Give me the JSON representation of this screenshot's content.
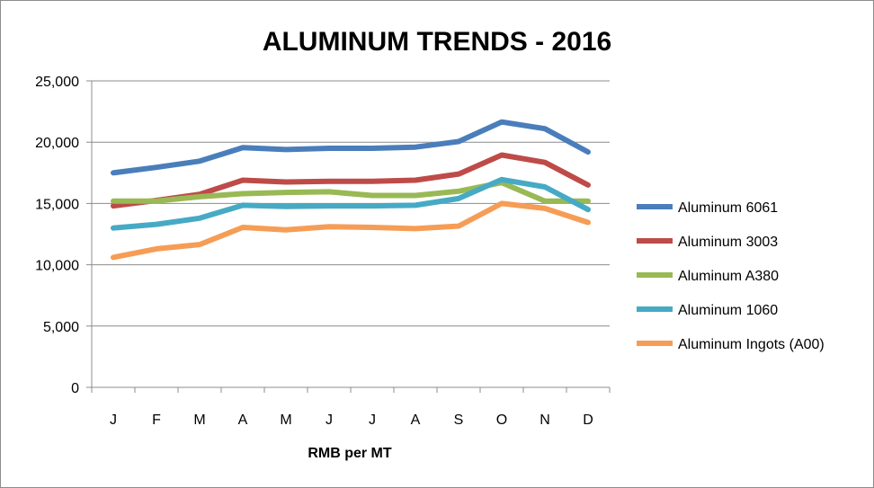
{
  "chart_data": {
    "type": "line",
    "title": "ALUMINUM TRENDS - 2016",
    "xlabel": "RMB per MT",
    "ylabel": "",
    "ylim": [
      0,
      25000
    ],
    "yticks": [
      0,
      5000,
      10000,
      15000,
      20000,
      25000
    ],
    "ytick_labels": [
      "0",
      "5,000",
      "10,000",
      "15,000",
      "20,000",
      "25,000"
    ],
    "categories": [
      "J",
      "F",
      "M",
      "A",
      "M",
      "J",
      "J",
      "A",
      "S",
      "O",
      "N",
      "D"
    ],
    "grid": true,
    "legend_position": "right",
    "series": [
      {
        "name": "Aluminum 6061",
        "color": "#4a7ebb",
        "values": [
          17500,
          17950,
          18450,
          19550,
          19400,
          19500,
          19500,
          19600,
          20050,
          21650,
          21100,
          19200
        ]
      },
      {
        "name": "Aluminum 3003",
        "color": "#be4b48",
        "values": [
          14800,
          15250,
          15750,
          16900,
          16750,
          16800,
          16800,
          16900,
          17400,
          18950,
          18350,
          16500
        ]
      },
      {
        "name": "Aluminum A380",
        "color": "#98b954",
        "values": [
          15200,
          15200,
          15550,
          15800,
          15900,
          15950,
          15650,
          15650,
          16000,
          16700,
          15200,
          15200
        ]
      },
      {
        "name": "Aluminum 1060",
        "color": "#46aac5",
        "values": [
          13000,
          13300,
          13800,
          14850,
          14750,
          14800,
          14800,
          14850,
          15400,
          16950,
          16350,
          14500
        ]
      },
      {
        "name": "Aluminum Ingots (A00)",
        "color": "#f59d56",
        "values": [
          10600,
          11300,
          11650,
          13050,
          12850,
          13100,
          13050,
          12950,
          13150,
          15000,
          14600,
          13450
        ]
      }
    ]
  }
}
